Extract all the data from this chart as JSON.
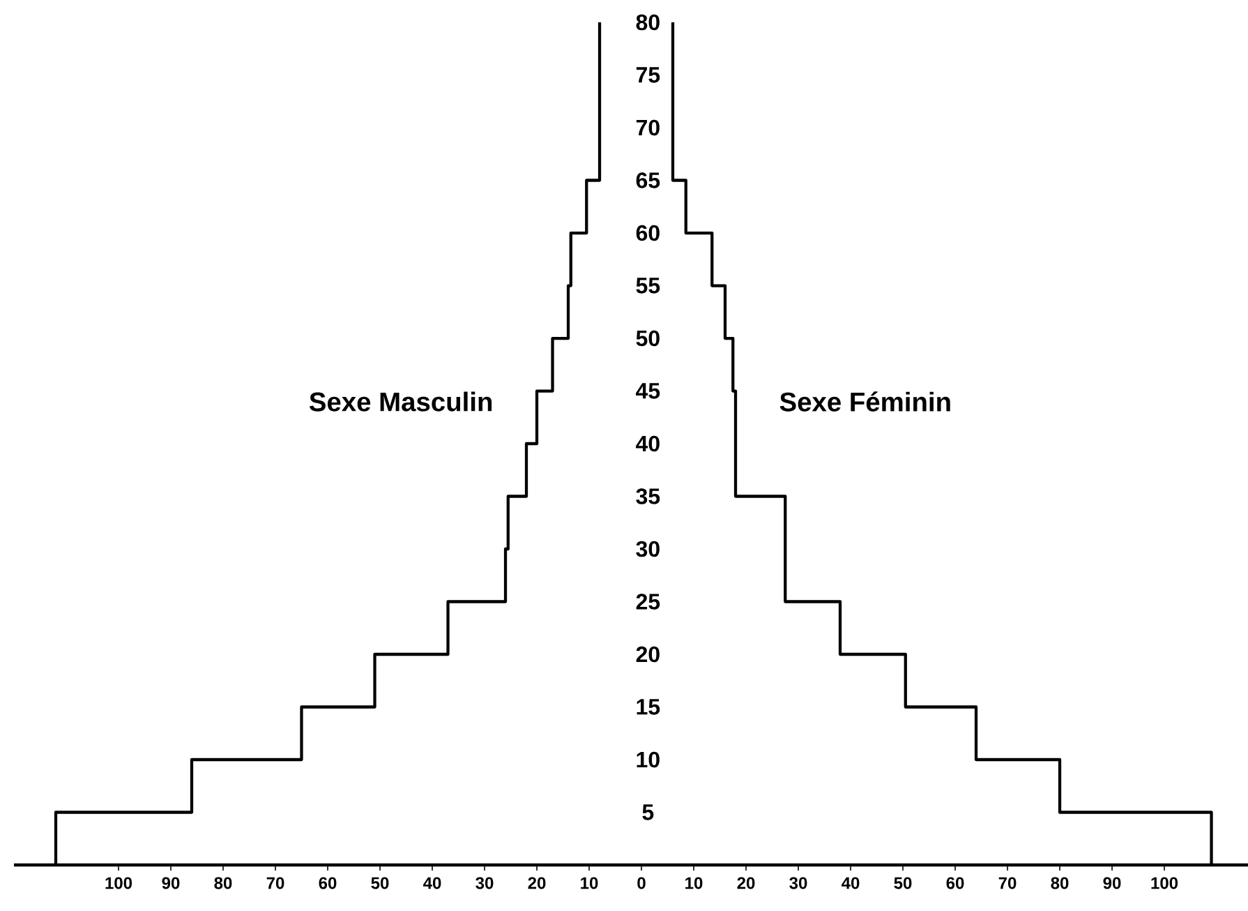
{
  "chart_data": {
    "type": "histogram",
    "orientation": "horizontal",
    "bins": [
      0,
      5,
      10,
      15,
      20,
      25,
      30,
      35,
      40,
      45,
      50,
      55,
      60,
      65,
      70,
      75,
      80
    ],
    "series": [
      {
        "name": "Sexe Masculin",
        "color": "#000000",
        "values": [
          -112,
          -86,
          -65,
          -51,
          -37,
          -26,
          -25.5,
          -22,
          -20,
          -17,
          -14,
          -13.5,
          -10.5,
          -8,
          -8,
          -8
        ]
      },
      {
        "name": "Sexe Féminin",
        "color": "#000000",
        "values": [
          109,
          80,
          64,
          50.5,
          38,
          27.5,
          27.5,
          18,
          18,
          17.5,
          16,
          13.5,
          8.5,
          6,
          6,
          6
        ]
      }
    ],
    "xlim": [
      -120,
      116
    ],
    "xticks": [
      {
        "value": -100,
        "label": "100"
      },
      {
        "value": -90,
        "label": "90"
      },
      {
        "value": -80,
        "label": "80"
      },
      {
        "value": -70,
        "label": "70"
      },
      {
        "value": -60,
        "label": "60"
      },
      {
        "value": -50,
        "label": "50"
      },
      {
        "value": -40,
        "label": "40"
      },
      {
        "value": -30,
        "label": "30"
      },
      {
        "value": -20,
        "label": "20"
      },
      {
        "value": -10,
        "label": "10"
      },
      0,
      10,
      20,
      30,
      40,
      50,
      60,
      70,
      80,
      90,
      100
    ],
    "ylim": [
      0,
      80
    ],
    "yticks": [
      5,
      10,
      15,
      20,
      25,
      30,
      35,
      40,
      45,
      50,
      55,
      60,
      65,
      70,
      75,
      80
    ]
  }
}
